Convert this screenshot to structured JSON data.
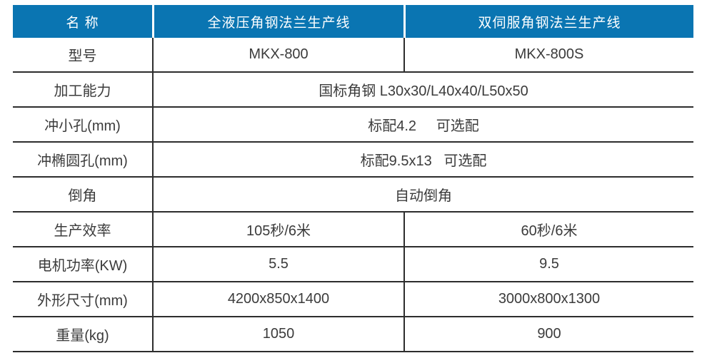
{
  "colors": {
    "page_bg": "#ffffff",
    "header_bg": "#0a75b2",
    "header_text": "#ffffff",
    "body_text": "#3b3b3b",
    "border": "#2d2d2d"
  },
  "table": {
    "header": {
      "name_label": "名 称",
      "product1": "全液压角钢法兰生产线",
      "product2": "双伺服角钢法兰生产线"
    },
    "rows": [
      {
        "label": "型号",
        "value1": "MKX-800",
        "value2": "MKX-800S"
      },
      {
        "label": "加工能力",
        "value": "国标角钢 L30x30/L40x40/L50x50"
      },
      {
        "label": "冲小孔(mm)",
        "value": "标配4.2     可选配"
      },
      {
        "label": "冲椭圆孔(mm)",
        "value": "标配9.5x13   可选配"
      },
      {
        "label": "倒角",
        "value": "自动倒角"
      },
      {
        "label": "生产效率",
        "value1": "105秒/6米",
        "value2": "60秒/6米"
      },
      {
        "label": "电机功率(KW)",
        "value1": "5.5",
        "value2": "9.5"
      },
      {
        "label": "外形尺寸(mm)",
        "value1": "4200x850x1400",
        "value2": "3000x800x1300"
      },
      {
        "label": "重量(kg)",
        "value1": "1050",
        "value2": "900"
      }
    ]
  }
}
